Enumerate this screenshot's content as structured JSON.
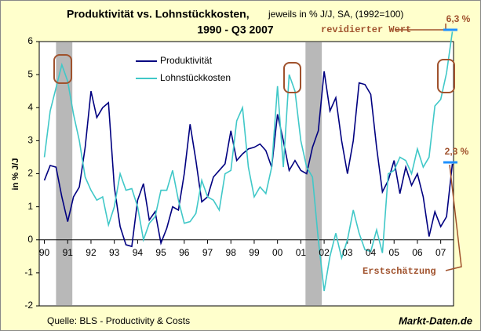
{
  "chart_data": {
    "type": "line",
    "title": "Produktivität vs. Lohnstückkosten,",
    "title_note": "jeweils in % J/J, SA, (1992=100)",
    "subtitle": "1990 - Q3 2007",
    "y_label": "in % J/J",
    "source": "Quelle: BLS - Productivity & Costs",
    "brand": "Markt-Daten.de",
    "annotations": {
      "revised_label": "revidierter Wert",
      "revised_value": "6,3 %",
      "first_value": "2,3 %",
      "first_label": "Erstschätzung"
    },
    "x": [
      1990,
      1990.25,
      1990.5,
      1990.75,
      1991,
      1991.25,
      1991.5,
      1991.75,
      1992,
      1992.25,
      1992.5,
      1992.75,
      1993,
      1993.25,
      1993.5,
      1993.75,
      1994,
      1994.25,
      1994.5,
      1994.75,
      1995,
      1995.25,
      1995.5,
      1995.75,
      1996,
      1996.25,
      1996.5,
      1996.75,
      1997,
      1997.25,
      1997.5,
      1997.75,
      1998,
      1998.25,
      1998.5,
      1998.75,
      1999,
      1999.25,
      1999.5,
      1999.75,
      2000,
      2000.25,
      2000.5,
      2000.75,
      2001,
      2001.25,
      2001.5,
      2001.75,
      2002,
      2002.25,
      2002.5,
      2002.75,
      2003,
      2003.25,
      2003.5,
      2003.75,
      2004,
      2004.25,
      2004.5,
      2004.75,
      2005,
      2005.25,
      2005.5,
      2005.75,
      2006,
      2006.25,
      2006.5,
      2006.75,
      2007,
      2007.25,
      2007.5
    ],
    "series": [
      {
        "name": "Produktivität",
        "color": "#000080",
        "values": [
          1.8,
          2.25,
          2.2,
          1.3,
          0.55,
          1.3,
          1.6,
          2.8,
          4.5,
          3.7,
          4.0,
          4.15,
          1.6,
          0.4,
          -0.15,
          -0.2,
          1.2,
          1.7,
          0.6,
          0.85,
          -0.1,
          0.35,
          1.0,
          0.9,
          2.0,
          3.5,
          2.4,
          1.15,
          1.3,
          1.9,
          2.1,
          2.3,
          3.3,
          2.4,
          2.6,
          2.75,
          2.8,
          2.9,
          2.7,
          2.2,
          3.8,
          3.0,
          2.1,
          2.4,
          2.1,
          2.0,
          2.8,
          3.3,
          5.1,
          3.9,
          4.3,
          3.0,
          2.0,
          3.0,
          4.75,
          4.7,
          4.4,
          2.8,
          1.45,
          1.8,
          2.4,
          1.4,
          2.2,
          1.65,
          2.0,
          1.3,
          0.1,
          0.85,
          0.4,
          0.7,
          2.3
        ]
      },
      {
        "name": "Lohnstückkosten",
        "color": "#40c8c8",
        "values": [
          2.5,
          3.9,
          4.6,
          5.3,
          4.8,
          3.8,
          3.0,
          1.9,
          1.5,
          1.2,
          1.3,
          0.45,
          1.0,
          2.0,
          1.5,
          1.55,
          1.0,
          0.0,
          0.5,
          0.7,
          1.5,
          1.5,
          2.1,
          1.2,
          0.5,
          0.55,
          0.8,
          1.8,
          1.3,
          1.2,
          0.9,
          2.0,
          2.1,
          3.6,
          4.0,
          2.2,
          1.3,
          1.6,
          1.4,
          2.2,
          4.65,
          2.2,
          5.0,
          4.5,
          3.0,
          2.2,
          1.9,
          0.0,
          -1.55,
          -0.5,
          0.2,
          -0.55,
          0.0,
          0.9,
          0.2,
          -0.3,
          -0.35,
          0.3,
          -0.4,
          2.0,
          2.1,
          2.5,
          2.4,
          2.0,
          2.75,
          2.2,
          2.5,
          4.05,
          4.25,
          5.05,
          6.3
        ]
      }
    ],
    "shaded_periods": [
      [
        1990.5,
        1991.2
      ],
      [
        2001.2,
        2001.9
      ]
    ],
    "xlim": [
      1989.78,
      2007.55
    ],
    "xticks": [
      {
        "value": 1990,
        "label": "90"
      },
      {
        "value": 1991,
        "label": "91"
      },
      {
        "value": 1992,
        "label": "92"
      },
      {
        "value": 1993,
        "label": "93"
      },
      {
        "value": 1994,
        "label": "94"
      },
      {
        "value": 1995,
        "label": "95"
      },
      {
        "value": 1996,
        "label": "96"
      },
      {
        "value": 1997,
        "label": "97"
      },
      {
        "value": 1998,
        "label": "98"
      },
      {
        "value": 1999,
        "label": "99"
      },
      {
        "value": 2000,
        "label": "00"
      },
      {
        "value": 2001,
        "label": "01"
      },
      {
        "value": 2002,
        "label": "02"
      },
      {
        "value": 2003,
        "label": "03"
      },
      {
        "value": 2004,
        "label": "04"
      },
      {
        "value": 2005,
        "label": "05"
      },
      {
        "value": 2006,
        "label": "06"
      },
      {
        "value": 2007,
        "label": "07"
      }
    ],
    "ylim": [
      -2,
      6
    ],
    "yticks": [
      -2,
      -1,
      0,
      1,
      2,
      3,
      4,
      5,
      6
    ],
    "legend": "top-left"
  }
}
